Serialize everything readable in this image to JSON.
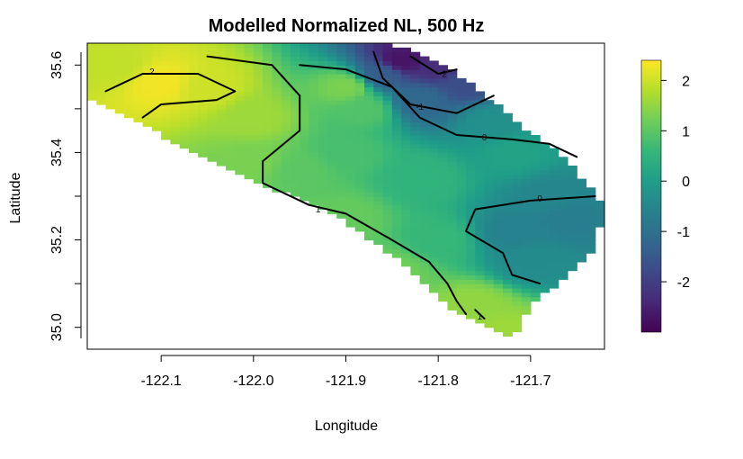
{
  "chart_data": {
    "type": "heatmap",
    "title": "Modelled Normalized NL, 500 Hz",
    "xlabel": "Longitude",
    "ylabel": "Latitude",
    "xlim": [
      -122.18,
      -121.62
    ],
    "ylim": [
      34.95,
      35.65
    ],
    "x_ticks": [
      -122.1,
      -122.0,
      -121.9,
      -121.8,
      -121.7
    ],
    "x_tick_labels": [
      "-122.1",
      "-122.0",
      "-121.9",
      "-121.8",
      "-121.7"
    ],
    "y_ticks": [
      35.0,
      35.2,
      35.4,
      35.6
    ],
    "y_tick_labels": [
      "35.0",
      "35.2",
      "35.4",
      "35.6"
    ],
    "colorbar": {
      "palette": "viridis",
      "range": [
        -3.0,
        2.4
      ],
      "ticks": [
        2,
        1,
        0,
        -1,
        -2
      ],
      "tick_labels": [
        "2",
        "1",
        "0",
        "-1",
        "-2"
      ],
      "colors": [
        "#440154",
        "#482878",
        "#3e4989",
        "#31688e",
        "#26828e",
        "#1f9e89",
        "#35b779",
        "#6ece58",
        "#b5de2b",
        "#fde725"
      ]
    },
    "domain_boundary": [
      [
        -122.18,
        35.53
      ],
      [
        -122.02,
        35.35
      ],
      [
        -121.92,
        35.27
      ],
      [
        -121.84,
        35.15
      ],
      [
        -121.79,
        35.05
      ],
      [
        -121.75,
        35.01
      ],
      [
        -121.72,
        34.97
      ],
      [
        -121.7,
        35.05
      ],
      [
        -121.66,
        35.12
      ],
      [
        -121.63,
        35.18
      ],
      [
        -121.62,
        35.28
      ],
      [
        -121.66,
        35.38
      ],
      [
        -121.72,
        35.48
      ],
      [
        -121.76,
        35.55
      ],
      [
        -121.8,
        35.61
      ],
      [
        -121.84,
        35.64
      ],
      [
        -121.87,
        35.65
      ],
      [
        -122.18,
        35.65
      ]
    ],
    "anchors": [
      {
        "x": -122.1,
        "y": 35.56,
        "v": 2.3
      },
      {
        "x": -122.05,
        "y": 35.55,
        "v": 2.0
      },
      {
        "x": -122.15,
        "y": 35.6,
        "v": 1.9
      },
      {
        "x": -122.0,
        "y": 35.48,
        "v": 1.6
      },
      {
        "x": -121.9,
        "y": 35.55,
        "v": 1.3
      },
      {
        "x": -121.88,
        "y": 35.5,
        "v": 0.9
      },
      {
        "x": -121.84,
        "y": 35.61,
        "v": -2.7
      },
      {
        "x": -121.8,
        "y": 35.6,
        "v": -2.3
      },
      {
        "x": -121.77,
        "y": 35.56,
        "v": -1.7
      },
      {
        "x": -121.82,
        "y": 35.52,
        "v": -1.2
      },
      {
        "x": -121.86,
        "y": 35.58,
        "v": -1.4
      },
      {
        "x": -121.74,
        "y": 35.47,
        "v": -0.3
      },
      {
        "x": -121.9,
        "y": 35.4,
        "v": 0.8
      },
      {
        "x": -121.95,
        "y": 35.36,
        "v": 1.0
      },
      {
        "x": -121.82,
        "y": 35.34,
        "v": 0.5
      },
      {
        "x": -121.72,
        "y": 35.4,
        "v": 0.1
      },
      {
        "x": -121.68,
        "y": 35.3,
        "v": -0.5
      },
      {
        "x": -121.72,
        "y": 35.22,
        "v": -0.6
      },
      {
        "x": -121.7,
        "y": 35.15,
        "v": -0.4
      },
      {
        "x": -121.66,
        "y": 35.25,
        "v": -0.7
      },
      {
        "x": -121.8,
        "y": 35.2,
        "v": 0.6
      },
      {
        "x": -121.85,
        "y": 35.13,
        "v": 1.2
      },
      {
        "x": -121.76,
        "y": 35.05,
        "v": 1.5
      },
      {
        "x": -121.73,
        "y": 34.99,
        "v": 1.6
      },
      {
        "x": -121.9,
        "y": 35.25,
        "v": 1.1
      },
      {
        "x": -122.0,
        "y": 35.38,
        "v": 1.3
      }
    ],
    "contours": [
      {
        "level": "2",
        "points": [
          [
            -122.16,
            35.54
          ],
          [
            -122.12,
            35.58
          ],
          [
            -122.06,
            35.58
          ],
          [
            -122.02,
            35.54
          ],
          [
            -122.04,
            35.52
          ],
          [
            -122.1,
            35.51
          ],
          [
            -122.12,
            35.48
          ]
        ],
        "label_at": [
          -122.11,
          35.585
        ]
      },
      {
        "level": "1",
        "points": [
          [
            -122.05,
            35.62
          ],
          [
            -121.98,
            35.6
          ],
          [
            -121.95,
            35.53
          ],
          [
            -121.95,
            35.45
          ],
          [
            -121.99,
            35.38
          ],
          [
            -121.99,
            35.33
          ],
          [
            -121.94,
            35.28
          ],
          [
            -121.9,
            35.26
          ],
          [
            -121.85,
            35.2
          ],
          [
            -121.81,
            35.15
          ],
          [
            -121.79,
            35.1
          ],
          [
            -121.78,
            35.06
          ],
          [
            -121.77,
            35.03
          ]
        ],
        "label_at": [
          -121.93,
          35.27
        ]
      },
      {
        "level": "1",
        "points": [
          [
            -121.76,
            35.04
          ],
          [
            -121.75,
            35.02
          ]
        ],
        "label_at": [
          -121.755,
          35.025
        ]
      },
      {
        "level": "0",
        "points": [
          [
            -121.95,
            35.6
          ],
          [
            -121.9,
            35.59
          ],
          [
            -121.85,
            35.55
          ],
          [
            -121.82,
            35.48
          ],
          [
            -121.78,
            35.44
          ],
          [
            -121.72,
            35.43
          ],
          [
            -121.68,
            35.42
          ],
          [
            -121.65,
            35.39
          ]
        ],
        "label_at": [
          -121.75,
          35.435
        ]
      },
      {
        "level": "0",
        "points": [
          [
            -121.63,
            35.3
          ],
          [
            -121.7,
            35.29
          ],
          [
            -121.76,
            35.27
          ],
          [
            -121.77,
            35.22
          ],
          [
            -121.73,
            35.17
          ],
          [
            -121.72,
            35.12
          ],
          [
            -121.69,
            35.1
          ]
        ],
        "label_at": [
          -121.69,
          35.295
        ]
      },
      {
        "level": "-1",
        "points": [
          [
            -121.87,
            35.63
          ],
          [
            -121.86,
            35.57
          ],
          [
            -121.83,
            35.51
          ],
          [
            -121.78,
            35.49
          ],
          [
            -121.74,
            35.53
          ]
        ],
        "label_at": [
          -121.82,
          35.505
        ]
      },
      {
        "level": "-2",
        "points": [
          [
            -121.83,
            35.62
          ],
          [
            -121.8,
            35.58
          ],
          [
            -121.78,
            35.59
          ]
        ],
        "label_at": [
          -121.795,
          35.58
        ]
      }
    ]
  }
}
